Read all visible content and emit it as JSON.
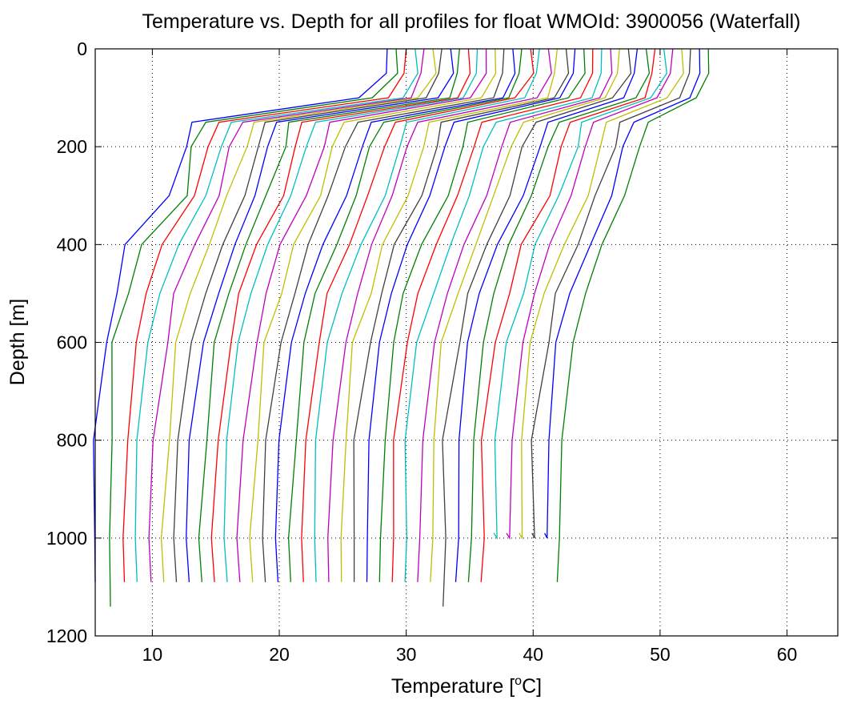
{
  "chart_data": {
    "type": "line",
    "title": "Temperature vs. Depth for all profiles for float WMOId: 3900056 (Waterfall)",
    "xlabel": "Temperature [",
    "xlabel_sup": "o",
    "xlabel_end": "C]",
    "ylabel": "Depth [m]",
    "xlim": [
      5.5,
      64
    ],
    "ylim": [
      0,
      1200
    ],
    "y_reversed": true,
    "x_ticks": [
      "10",
      "20",
      "30",
      "40",
      "50",
      "60"
    ],
    "y_ticks": [
      "0",
      "200",
      "400",
      "600",
      "800",
      "1000",
      "1200"
    ],
    "grid": true,
    "grid_style": "dotted",
    "color_cycle": [
      "#0000ff",
      "#008000",
      "#ff0000",
      "#00bfbf",
      "#bf00bf",
      "#bfbf00",
      "#404040"
    ],
    "profile_depths": [
      0,
      50,
      100,
      150,
      200,
      300,
      400,
      500,
      600,
      800,
      1000
    ],
    "series": [
      {
        "values": [
          28.5,
          28.5,
          26.5,
          13,
          12.5,
          11.5,
          8,
          7,
          6.3,
          5.6,
          5.5
        ],
        "max_depth": 1090
      },
      {
        "values": [
          29.2,
          29.2,
          27.5,
          14,
          13.3,
          12.5,
          9.4,
          7.9,
          7,
          6.7,
          6.7
        ],
        "max_depth": 1140
      },
      {
        "values": [
          30,
          30,
          28.5,
          15,
          14.3,
          13.5,
          11,
          9.5,
          8.5,
          7.9,
          7.8
        ],
        "max_depth": 1090
      },
      {
        "values": [
          30.7,
          30.7,
          29.5,
          16,
          15.3,
          14.2,
          12.2,
          10.8,
          9.9,
          9,
          8.8
        ],
        "max_depth": 1090
      },
      {
        "values": [
          31.4,
          31.4,
          30.3,
          17,
          16.3,
          15.1,
          13.3,
          11.9,
          11,
          10.1,
          9.9
        ],
        "max_depth": 1090
      },
      {
        "values": [
          32.1,
          32.1,
          31.1,
          18,
          17.3,
          16.1,
          14.3,
          13,
          12,
          11.1,
          10.9
        ],
        "max_depth": 1090
      },
      {
        "values": [
          32.8,
          32.8,
          31.8,
          19,
          18.3,
          17.1,
          15.3,
          14,
          13,
          12.1,
          11.9
        ],
        "max_depth": 1090
      },
      {
        "values": [
          33.5,
          33.5,
          32.5,
          20,
          19.3,
          18.1,
          16.3,
          15,
          14,
          13.1,
          12.9
        ],
        "max_depth": 1090
      },
      {
        "values": [
          34.2,
          34.2,
          33.2,
          21,
          20.3,
          19.1,
          17.3,
          16,
          15,
          14.1,
          13.9
        ],
        "max_depth": 1090
      },
      {
        "values": [
          34.9,
          34.9,
          33.9,
          22,
          21.3,
          20.1,
          18.3,
          17,
          16,
          15.1,
          14.9
        ],
        "max_depth": 1090
      },
      {
        "values": [
          35.6,
          35.6,
          34.6,
          23,
          22.3,
          21.1,
          19.3,
          18,
          17,
          16.1,
          15.9
        ],
        "max_depth": 1090
      },
      {
        "values": [
          36.3,
          36.3,
          35.3,
          24,
          23.3,
          22.1,
          20.3,
          19,
          18,
          17.1,
          16.9
        ],
        "max_depth": 1090
      },
      {
        "values": [
          37,
          37,
          36,
          25,
          24.3,
          23.1,
          21.3,
          20,
          19,
          18.1,
          17.9
        ],
        "max_depth": 1090
      },
      {
        "values": [
          37.7,
          37.7,
          36.7,
          26,
          25.3,
          24.1,
          22.3,
          21,
          20,
          19.1,
          18.9
        ],
        "max_depth": 1090
      },
      {
        "values": [
          38.4,
          38.4,
          37.4,
          27,
          26.3,
          25.1,
          23.3,
          22,
          21,
          20.1,
          19.9
        ],
        "max_depth": 1090
      },
      {
        "values": [
          39.1,
          39.1,
          38.1,
          28,
          27.3,
          26.1,
          24.3,
          23,
          22,
          21.1,
          20.9
        ],
        "max_depth": 1090
      },
      {
        "values": [
          39.8,
          39.8,
          38.8,
          29,
          28.3,
          27.1,
          25.3,
          24,
          23,
          22.1,
          21.9
        ],
        "max_depth": 1090
      },
      {
        "values": [
          40.5,
          40.5,
          39.5,
          30,
          29.3,
          28.1,
          26.3,
          25,
          24,
          23.1,
          22.9
        ],
        "max_depth": 1090
      },
      {
        "values": [
          41.2,
          41.2,
          40.2,
          31,
          30.3,
          29.1,
          27.3,
          26,
          25,
          24.1,
          23.9
        ],
        "max_depth": 1090
      },
      {
        "values": [
          41.9,
          41.9,
          40.9,
          32,
          31.3,
          30.1,
          28.3,
          27,
          26,
          25.1,
          24.9
        ],
        "max_depth": 1090
      },
      {
        "values": [
          42.6,
          42.6,
          41.6,
          33,
          32.3,
          31.1,
          29.3,
          28,
          27,
          26.1,
          25.9
        ],
        "max_depth": 1090
      },
      {
        "values": [
          43.3,
          43.3,
          42.3,
          34,
          33.3,
          32.1,
          30.3,
          29,
          28,
          27.1,
          26.9
        ],
        "max_depth": 1090
      },
      {
        "values": [
          44,
          44,
          43,
          35,
          34.3,
          33.1,
          31.3,
          30,
          29,
          28.1,
          27.9
        ],
        "max_depth": 1090
      },
      {
        "values": [
          44.7,
          44.7,
          43.7,
          36,
          35.3,
          34.1,
          32.3,
          31,
          30,
          29.1,
          28.9
        ],
        "max_depth": 1090
      },
      {
        "values": [
          45.4,
          45.4,
          44.4,
          37,
          36.3,
          35.1,
          33.3,
          32,
          31,
          30.1,
          29.9
        ],
        "max_depth": 1090
      },
      {
        "values": [
          46.1,
          46.1,
          45.1,
          38,
          37.3,
          36.1,
          34.3,
          33,
          32,
          31.1,
          30.9
        ],
        "max_depth": 1090
      },
      {
        "values": [
          46.8,
          46.8,
          45.8,
          39,
          38.3,
          37.1,
          35.3,
          34,
          33,
          32.1,
          31.9
        ],
        "max_depth": 1090
      },
      {
        "values": [
          47.5,
          47.5,
          46.5,
          40,
          39.3,
          38.1,
          36.3,
          35,
          34,
          33.1,
          32.9
        ],
        "max_depth": 1140
      },
      {
        "values": [
          48.2,
          48.2,
          47.2,
          41,
          40.3,
          39.1,
          37.3,
          36,
          35,
          34.1,
          33.9
        ],
        "max_depth": 1090
      },
      {
        "values": [
          48.9,
          48.9,
          47.9,
          42,
          41.3,
          40.1,
          38.3,
          37,
          36,
          35.1,
          34.9
        ],
        "max_depth": 1090
      },
      {
        "values": [
          49.6,
          49.6,
          48.6,
          43,
          42.3,
          41.1,
          39.3,
          38,
          37,
          36.1,
          35.9
        ],
        "max_depth": 1090
      },
      {
        "values": [
          50.3,
          50.3,
          49.3,
          44,
          43.3,
          42.1,
          40.3,
          39,
          38,
          37.1,
          36.9
        ],
        "max_depth": 990
      },
      {
        "values": [
          51,
          51,
          50,
          45,
          44.3,
          43.1,
          41.3,
          40,
          39,
          38.1,
          37.9
        ],
        "max_depth": 990
      },
      {
        "values": [
          51.7,
          51.7,
          50.7,
          46,
          45.3,
          44.1,
          42.3,
          41,
          40,
          39.1,
          38.9
        ],
        "max_depth": 990
      },
      {
        "values": [
          52.4,
          52.4,
          51.4,
          47,
          46.3,
          45.1,
          43.3,
          42,
          41,
          40.1,
          39.9
        ],
        "max_depth": 990
      },
      {
        "values": [
          53.1,
          53.1,
          52.1,
          48,
          47.3,
          46.1,
          44.3,
          43,
          42,
          41.1,
          40.9
        ],
        "max_depth": 990
      },
      {
        "values": [
          53.8,
          53.8,
          52.8,
          49,
          48.3,
          47.1,
          45.3,
          44,
          43,
          42.1,
          41.9
        ],
        "max_depth": 1090
      }
    ]
  }
}
